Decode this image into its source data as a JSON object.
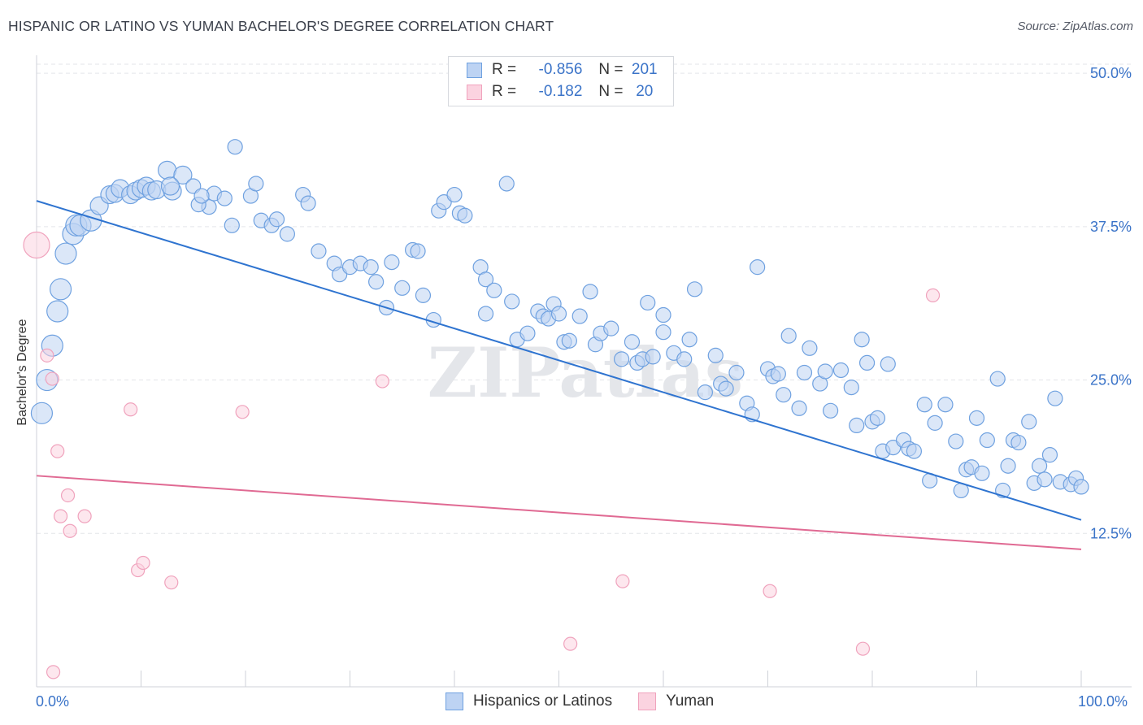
{
  "title": "HISPANIC OR LATINO VS YUMAN BACHELOR'S DEGREE CORRELATION CHART",
  "source": "Source: ZipAtlas.com",
  "watermark": "ZIPatlas",
  "legend": {
    "r_label": "R =",
    "n_label": "N =",
    "series": [
      {
        "r": "-0.856",
        "n": "201"
      },
      {
        "r": "-0.182",
        "n": "20"
      }
    ]
  },
  "chart_data": {
    "type": "scatter",
    "title": "HISPANIC OR LATINO VS YUMAN BACHELOR'S DEGREE CORRELATION CHART",
    "xlabel": "",
    "ylabel": "Bachelor's Degree",
    "xlim": [
      0,
      100
    ],
    "ylim": [
      0,
      51
    ],
    "x_tick_labels": [
      "0.0%",
      "100.0%"
    ],
    "y_ticks": [
      12.5,
      25.0,
      37.5,
      50.0
    ],
    "y_tick_labels": [
      "12.5%",
      "25.0%",
      "37.5%",
      "50.0%"
    ],
    "colors": {
      "Hispanics or Latinos": "#6fa1e0",
      "Yuman": "#f0a3bd",
      "line_blue": "#2f74d0",
      "line_pink": "#e06a93"
    },
    "series": [
      {
        "name": "Hispanics or Latinos",
        "r": -0.856,
        "n": 201,
        "trend": [
          [
            0,
            39.6
          ],
          [
            100,
            13.6
          ]
        ],
        "points": [
          [
            0.5,
            22.3
          ],
          [
            1,
            25.0
          ],
          [
            1.5,
            27.8
          ],
          [
            2,
            30.6
          ],
          [
            2.3,
            32.4
          ],
          [
            2.8,
            35.3
          ],
          [
            3.5,
            36.9
          ],
          [
            3.8,
            37.6
          ],
          [
            4.2,
            37.6
          ],
          [
            5.2,
            38.0
          ],
          [
            6,
            39.2
          ],
          [
            7,
            40.1
          ],
          [
            7.5,
            40.2
          ],
          [
            8,
            40.6
          ],
          [
            9,
            40.1
          ],
          [
            9.5,
            40.4
          ],
          [
            10,
            40.6
          ],
          [
            10.5,
            40.8
          ],
          [
            11,
            40.4
          ],
          [
            11.5,
            40.5
          ],
          [
            12.5,
            42.1
          ],
          [
            13,
            40.4
          ],
          [
            14,
            41.7
          ],
          [
            12.8,
            40.8
          ],
          [
            15,
            40.8
          ],
          [
            16.5,
            39.1
          ],
          [
            15.5,
            39.3
          ],
          [
            17,
            40.2
          ],
          [
            15.8,
            40.0
          ],
          [
            18,
            39.8
          ],
          [
            19,
            44.0
          ],
          [
            18.7,
            37.6
          ],
          [
            20.5,
            40.0
          ],
          [
            21.5,
            38.0
          ],
          [
            21,
            41.0
          ],
          [
            22.5,
            37.6
          ],
          [
            23,
            38.1
          ],
          [
            24,
            36.9
          ],
          [
            25.5,
            40.1
          ],
          [
            26,
            39.4
          ],
          [
            27,
            35.5
          ],
          [
            28.5,
            34.5
          ],
          [
            29,
            33.6
          ],
          [
            30,
            34.2
          ],
          [
            31,
            34.5
          ],
          [
            32,
            34.2
          ],
          [
            32.5,
            33.0
          ],
          [
            33.5,
            30.9
          ],
          [
            34,
            34.6
          ],
          [
            35,
            32.5
          ],
          [
            36,
            35.6
          ],
          [
            36.5,
            35.5
          ],
          [
            37,
            31.9
          ],
          [
            38,
            29.9
          ],
          [
            38.5,
            38.8
          ],
          [
            39,
            39.5
          ],
          [
            40,
            40.1
          ],
          [
            40.5,
            38.6
          ],
          [
            41,
            38.4
          ],
          [
            42.5,
            34.2
          ],
          [
            43,
            33.2
          ],
          [
            43,
            30.4
          ],
          [
            43.8,
            32.3
          ],
          [
            45,
            41.0
          ],
          [
            45.5,
            31.4
          ],
          [
            46,
            28.3
          ],
          [
            47,
            28.8
          ],
          [
            48,
            30.6
          ],
          [
            48.5,
            30.2
          ],
          [
            49,
            30.0
          ],
          [
            49.5,
            31.2
          ],
          [
            50,
            30.4
          ],
          [
            50.5,
            28.1
          ],
          [
            51,
            28.2
          ],
          [
            52,
            30.2
          ],
          [
            53,
            32.2
          ],
          [
            53.5,
            27.9
          ],
          [
            54,
            28.8
          ],
          [
            55,
            29.2
          ],
          [
            56,
            26.7
          ],
          [
            57,
            28.1
          ],
          [
            57.5,
            26.4
          ],
          [
            58,
            26.7
          ],
          [
            58.5,
            31.3
          ],
          [
            59,
            26.9
          ],
          [
            60,
            30.3
          ],
          [
            60,
            28.9
          ],
          [
            61,
            27.2
          ],
          [
            62,
            26.7
          ],
          [
            62.5,
            28.3
          ],
          [
            63,
            32.4
          ],
          [
            64,
            24.0
          ],
          [
            65,
            27.0
          ],
          [
            65.5,
            24.7
          ],
          [
            66,
            24.3
          ],
          [
            67,
            25.6
          ],
          [
            68,
            23.1
          ],
          [
            68.5,
            22.2
          ],
          [
            69,
            34.2
          ],
          [
            70,
            25.9
          ],
          [
            70.5,
            25.3
          ],
          [
            71,
            25.5
          ],
          [
            71.5,
            23.8
          ],
          [
            72,
            28.6
          ],
          [
            73,
            22.7
          ],
          [
            73.5,
            25.6
          ],
          [
            74,
            27.6
          ],
          [
            75,
            24.7
          ],
          [
            75.5,
            25.7
          ],
          [
            76,
            22.5
          ],
          [
            77,
            25.8
          ],
          [
            78,
            24.4
          ],
          [
            78.5,
            21.3
          ],
          [
            79,
            28.3
          ],
          [
            79.5,
            26.4
          ],
          [
            80,
            21.6
          ],
          [
            80.5,
            21.9
          ],
          [
            81,
            19.2
          ],
          [
            81.5,
            26.3
          ],
          [
            82,
            19.5
          ],
          [
            83,
            20.1
          ],
          [
            83.5,
            19.4
          ],
          [
            84,
            19.2
          ],
          [
            85,
            23.0
          ],
          [
            85.5,
            16.8
          ],
          [
            86,
            21.5
          ],
          [
            87,
            23.0
          ],
          [
            88,
            20.0
          ],
          [
            88.5,
            16.0
          ],
          [
            89,
            17.7
          ],
          [
            89.5,
            17.9
          ],
          [
            90,
            21.9
          ],
          [
            90.5,
            17.4
          ],
          [
            91,
            20.1
          ],
          [
            92,
            25.1
          ],
          [
            92.5,
            16.0
          ],
          [
            93,
            18.0
          ],
          [
            93.5,
            20.1
          ],
          [
            94,
            19.9
          ],
          [
            95,
            21.6
          ],
          [
            95.5,
            16.6
          ],
          [
            96,
            18.0
          ],
          [
            96.5,
            16.9
          ],
          [
            97,
            18.9
          ],
          [
            97.5,
            23.5
          ],
          [
            98,
            16.7
          ],
          [
            99,
            16.5
          ],
          [
            99.5,
            17.0
          ],
          [
            100,
            16.3
          ]
        ]
      },
      {
        "name": "Yuman",
        "r": -0.182,
        "n": 20,
        "trend": [
          [
            0,
            17.2
          ],
          [
            100,
            11.2
          ]
        ],
        "points": [
          [
            0,
            36.0
          ],
          [
            1,
            27.0
          ],
          [
            1.5,
            25.1
          ],
          [
            2,
            19.2
          ],
          [
            2.3,
            13.9
          ],
          [
            3,
            15.6
          ],
          [
            3.2,
            12.7
          ],
          [
            4.6,
            13.9
          ],
          [
            9,
            22.6
          ],
          [
            9.7,
            9.5
          ],
          [
            10.2,
            10.1
          ],
          [
            12.9,
            8.5
          ],
          [
            19.7,
            22.4
          ],
          [
            33.1,
            24.9
          ],
          [
            51.1,
            3.5
          ],
          [
            56.1,
            8.6
          ],
          [
            70.2,
            7.8
          ],
          [
            79.1,
            3.1
          ],
          [
            85.8,
            31.9
          ],
          [
            1.6,
            1.2
          ]
        ]
      }
    ]
  }
}
